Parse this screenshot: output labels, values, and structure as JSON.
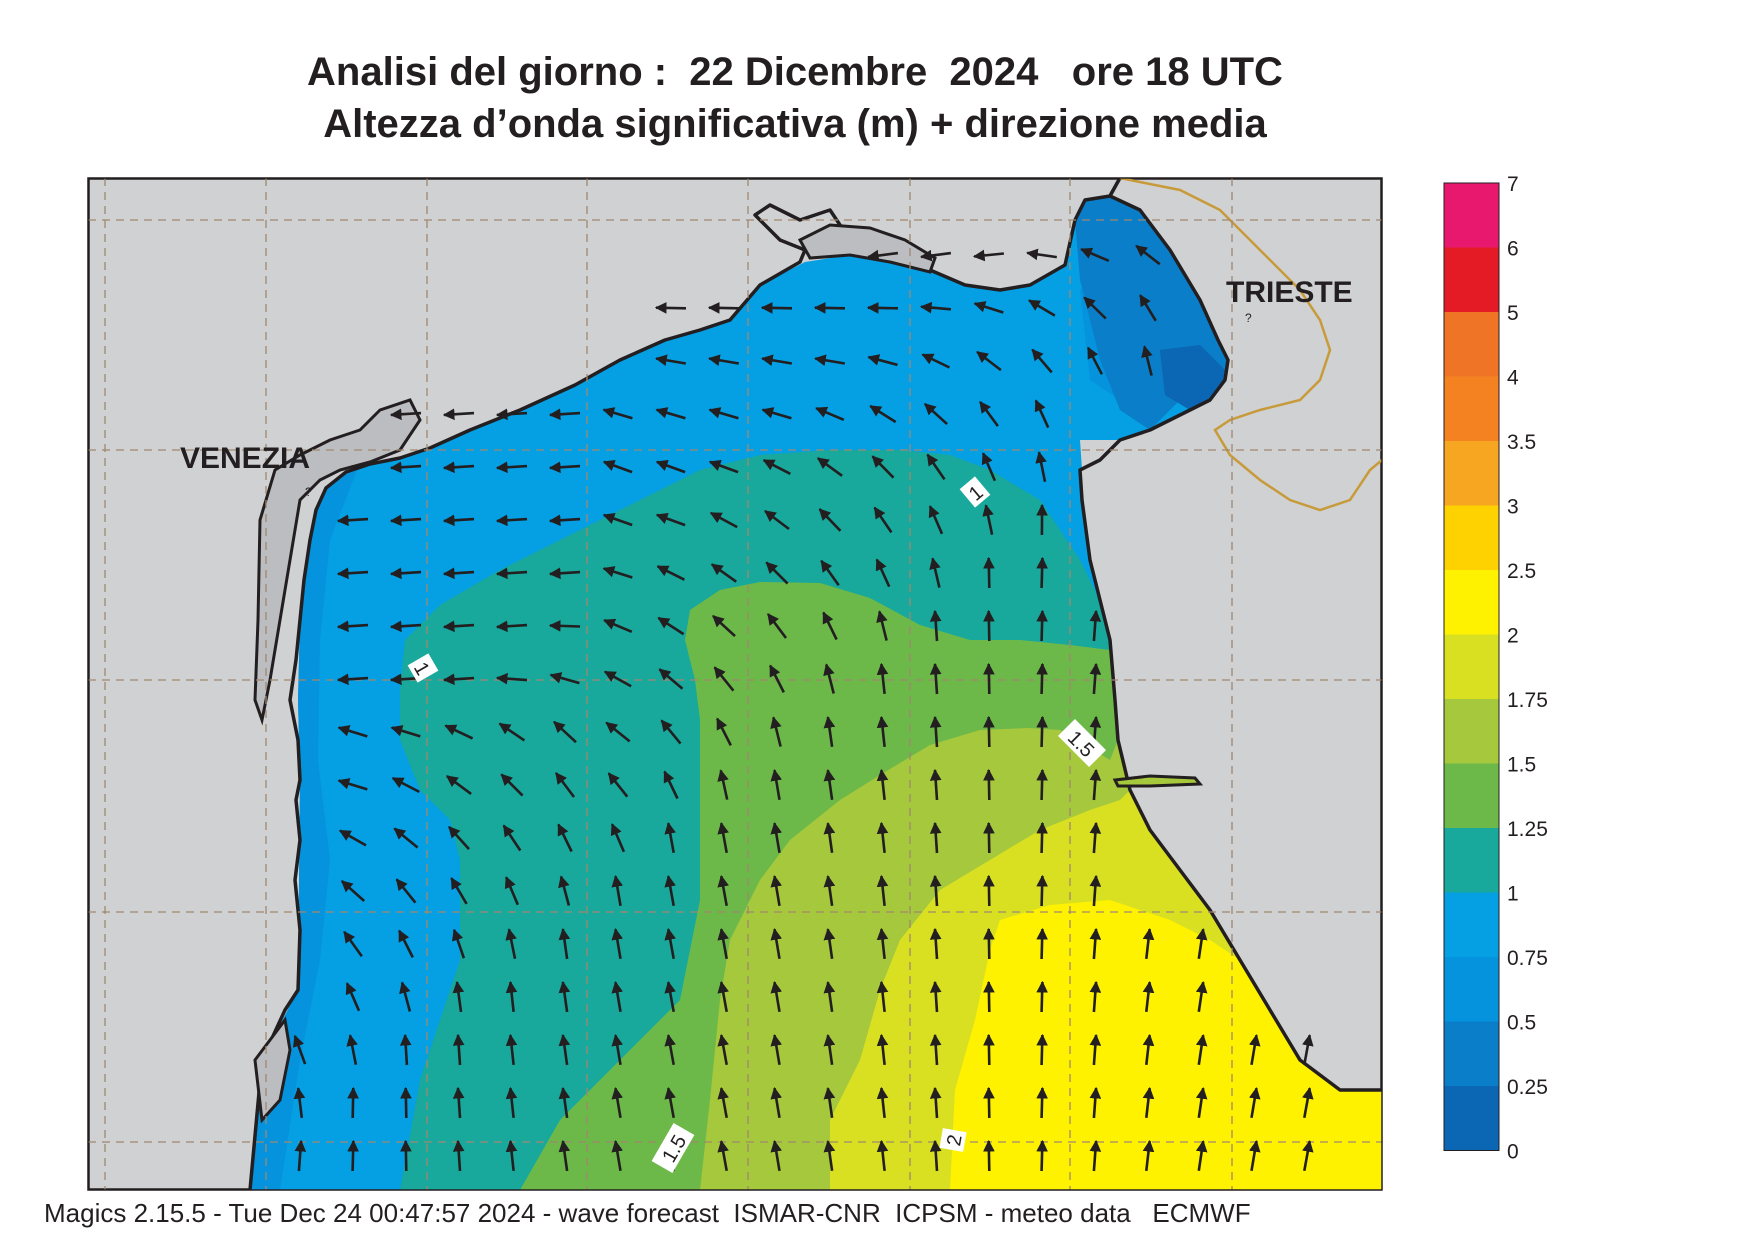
{
  "title": {
    "line1": "Analisi del giorno :  22 Dicembre  2024   ore 18 UTC",
    "line2": "Altezza d’onda significativa (m) + direzione media"
  },
  "places": {
    "venezia": "VENEZIA",
    "trieste": "TRIESTE"
  },
  "contour_labels": {
    "a": "1",
    "b": "1",
    "c": "1.5",
    "d": "1.5",
    "e": "2"
  },
  "legend": {
    "labels": [
      "7",
      "6",
      "5",
      "4",
      "3.5",
      "3",
      "2.5",
      "2",
      "1.75",
      "1.5",
      "1.25",
      "1",
      "0.75",
      "0.5",
      "0.25",
      "0"
    ],
    "colors": [
      "#e8186e",
      "#e41b25",
      "#f07426",
      "#f58220",
      "#f6a620",
      "#fdd200",
      "#fff200",
      "#d9e021",
      "#a6c83c",
      "#6cb94a",
      "#18a89c",
      "#059fe3",
      "#0593dd",
      "#0a7ec8",
      "#0b66b3"
    ]
  },
  "colors": {
    "land": "#d0d1d3",
    "lagoon": "#bcbdc0",
    "coast": "#231f20",
    "border": "#c79a3a",
    "grid": "#a08870"
  },
  "footer": "Magics 2.15.5 - Tue Dec 24 00:47:57 2024 - wave forecast  ISMAR-CNR  ICPSM - meteo data   ECMWF"
}
